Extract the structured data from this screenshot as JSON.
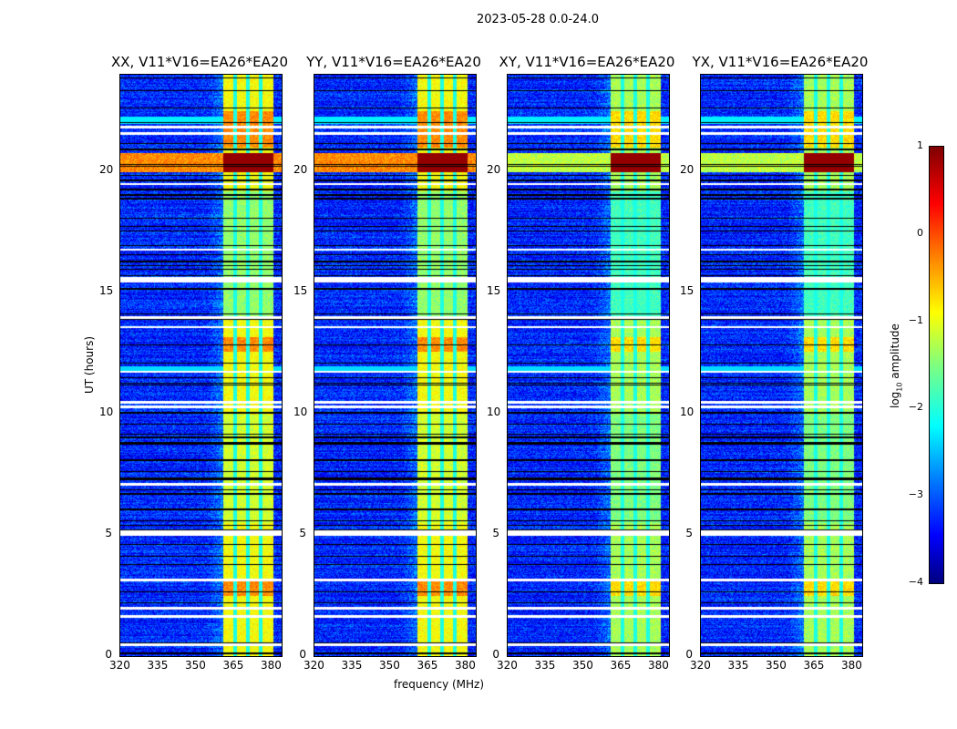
{
  "chart_data": {
    "type": "heatmap",
    "title": "2023-05-28 0.0-24.0",
    "xlabel": "frequency (MHz)",
    "ylabel": "UT (hours)",
    "xlim": [
      320,
      384
    ],
    "ylim": [
      0,
      24
    ],
    "xticks": [
      "320",
      "335",
      "350",
      "365",
      "380"
    ],
    "xtick_values": [
      320,
      335,
      350,
      365,
      380
    ],
    "yticks": [
      "0",
      "5",
      "10",
      "15",
      "20"
    ],
    "ytick_values": [
      0,
      5,
      10,
      15,
      20
    ],
    "panels": [
      {
        "title": "XX, V11*V16=EA26*EA20",
        "band_level": -0.9
      },
      {
        "title": "YY, V11*V16=EA26*EA20",
        "band_level": -0.9
      },
      {
        "title": "XY, V11*V16=EA26*EA20",
        "band_level": -1.3
      },
      {
        "title": "YX, V11*V16=EA26*EA20",
        "band_level": -1.3
      }
    ],
    "band_mhz": [
      360.5,
      380.5
    ],
    "background_level": -3.2,
    "strong_rfi_hours": [
      20.0,
      20.8
    ],
    "flagged_hours": [
      21.85,
      21.6,
      19.5,
      16.8,
      15.6,
      15.5,
      14.0,
      13.6,
      11.75,
      10.5,
      10.3,
      7.1,
      5.15,
      5.05,
      3.15,
      2.0,
      1.65,
      0.5
    ],
    "colorbar": {
      "label": "log10 amplitude",
      "label_main": "log",
      "label_sub": "10",
      "label_rest": " amplitude",
      "range": [
        -4,
        1
      ],
      "ticks": [
        "1",
        "0",
        "−1",
        "−2",
        "−3",
        "−4"
      ],
      "tick_values": [
        1,
        0,
        -1,
        -2,
        -3,
        -4
      ]
    }
  }
}
